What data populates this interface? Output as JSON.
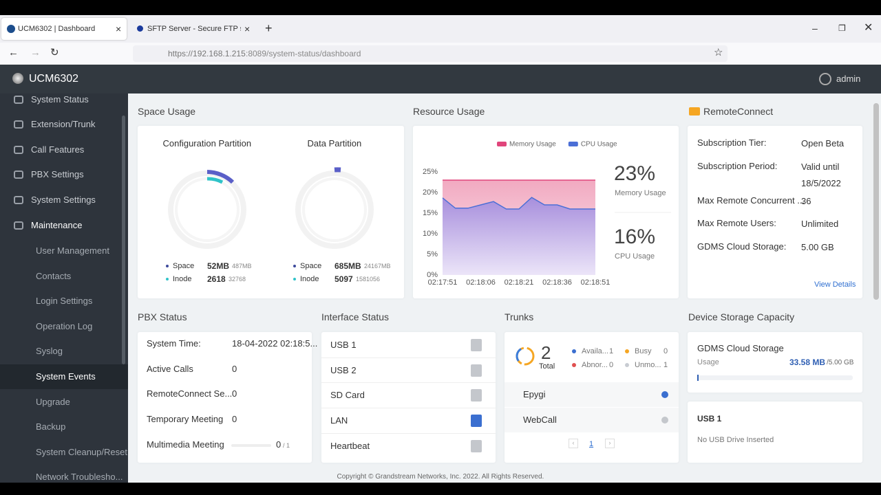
{
  "browser": {
    "tabs": [
      "UCM6302 | Dashboard",
      "SFTP Server - Secure FTP server"
    ],
    "url_host": "https://192.168.1.215",
    "url_path": ":8089/system-status/dashboard"
  },
  "header": {
    "title": "UCM6302",
    "user": "admin"
  },
  "sidebar": {
    "menu": [
      "System Status",
      "Extension/Trunk",
      "Call Features",
      "PBX Settings",
      "System Settings",
      "Maintenance"
    ],
    "submenu": [
      "User Management",
      "Contacts",
      "Login Settings",
      "Operation Log",
      "Syslog",
      "System Events",
      "Upgrade",
      "Backup",
      "System Cleanup/Reset",
      "Network Troublesho..."
    ]
  },
  "space_usage": {
    "title": "Space Usage",
    "partitions": [
      {
        "name": "Configuration Partition",
        "rows": [
          {
            "label": "Space",
            "used": "52MB",
            "total": "487MB"
          },
          {
            "label": "Inode",
            "used": "2618",
            "total": "32768"
          }
        ]
      },
      {
        "name": "Data Partition",
        "rows": [
          {
            "label": "Space",
            "used": "685MB",
            "total": "24167MB"
          },
          {
            "label": "Inode",
            "used": "5097",
            "total": "1581056"
          }
        ]
      }
    ]
  },
  "chart_data": {
    "type": "area",
    "title": "Resource Usage",
    "categories": [
      "02:17:51",
      null,
      null,
      "02:18:06",
      null,
      null,
      "02:18:21",
      null,
      null,
      "02:18:36",
      null,
      null,
      "02:18:51"
    ],
    "series": [
      {
        "name": "Memory Usage",
        "color": "#e0457b",
        "values": [
          23,
          23,
          23,
          23,
          23,
          23,
          23,
          23,
          23,
          23,
          23,
          23,
          23
        ]
      },
      {
        "name": "CPU Usage",
        "color": "#4b6fd6",
        "values": [
          18.7,
          16.2,
          16.2,
          17,
          17.8,
          16,
          16,
          18.8,
          17,
          17,
          16,
          16,
          16
        ]
      }
    ],
    "ylim": [
      0,
      25
    ],
    "yticks": [
      {
        "value": 0,
        "label": "0%"
      },
      {
        "value": 5,
        "label": "5%"
      },
      {
        "value": 10,
        "label": "10%"
      },
      {
        "value": 15,
        "label": "15%"
      },
      {
        "value": 20,
        "label": "20%"
      },
      {
        "value": 25,
        "label": "25%"
      }
    ],
    "legend": "top"
  },
  "resource_summary": [
    {
      "value": "23%",
      "label": "Memory Usage"
    },
    {
      "value": "16%",
      "label": "CPU Usage"
    }
  ],
  "remote_connect": {
    "title": "RemoteConnect",
    "rows": [
      [
        "Subscription Tier:",
        "Open Beta"
      ],
      [
        "Subscription Period:",
        "Valid until 18/5/2022"
      ],
      [
        "Max Remote Concurrent ...",
        "36"
      ],
      [
        "Max Remote Users:",
        "Unlimited"
      ],
      [
        "GDMS Cloud Storage:",
        "5.00 GB"
      ]
    ],
    "link": "View Details"
  },
  "pbx_status": {
    "title": "PBX Status",
    "rows": [
      [
        "System Time:",
        "18-04-2022 02:18:5..."
      ],
      [
        "Active Calls",
        "0"
      ],
      [
        "RemoteConnect Se...",
        "0"
      ],
      [
        "Temporary Meeting",
        "0"
      ],
      [
        "Multimedia Meeting",
        "0"
      ]
    ],
    "meeting_total": "/ 1"
  },
  "interface_status": {
    "title": "Interface Status",
    "items": [
      "USB 1",
      "USB 2",
      "SD Card",
      "LAN",
      "Heartbeat"
    ]
  },
  "trunks": {
    "title": "Trunks",
    "total": "2",
    "total_label": "Total",
    "states": [
      [
        "Availa...",
        "1"
      ],
      [
        "Busy",
        "0"
      ],
      [
        "Abnor...",
        "0"
      ],
      [
        "Unmo...",
        "1"
      ]
    ],
    "items": [
      "Epygi",
      "WebCall"
    ],
    "page": "1"
  },
  "storage": {
    "title": "Device Storage Capacity",
    "gdms": {
      "name": "GDMS Cloud Storage",
      "label": "Usage",
      "used": "33.58 MB",
      "total": "/5.00 GB"
    },
    "usb": {
      "name": "USB 1",
      "status": "No USB Drive Inserted"
    }
  },
  "footer": "Copyright © Grandstream Networks, Inc. 2022. All Rights Reserved."
}
